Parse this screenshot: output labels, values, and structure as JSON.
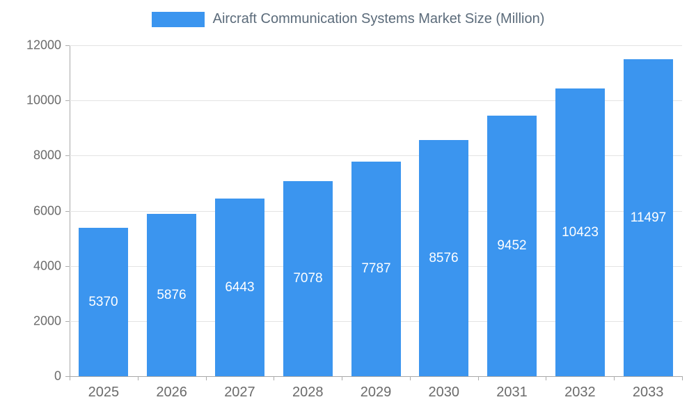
{
  "legend": {
    "label": "Aircraft Communication Systems Market Size (Million)"
  },
  "chart_data": {
    "type": "bar",
    "title": "Aircraft Communication Systems Market Size (Million)",
    "categories": [
      "2025",
      "2026",
      "2027",
      "2028",
      "2029",
      "2030",
      "2031",
      "2032",
      "2033"
    ],
    "values": [
      5370,
      5876,
      6443,
      7078,
      7787,
      8576,
      9452,
      10423,
      11497
    ],
    "xlabel": "",
    "ylabel": "",
    "ylim": [
      0,
      12000
    ],
    "ytick_step": 2000,
    "yticks": [
      0,
      2000,
      4000,
      6000,
      8000,
      10000,
      12000
    ],
    "bar_color": "#3b95ef",
    "value_label_color": "#ffffff",
    "grid": true,
    "legend_position": "top"
  }
}
